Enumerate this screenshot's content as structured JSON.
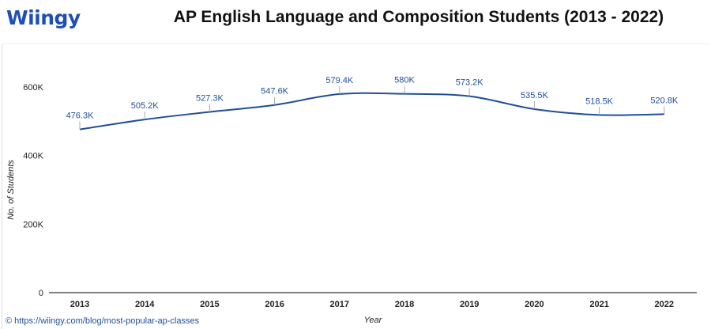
{
  "logo": "Wiingy",
  "source": "© https://wiingy.com/blog/most-popular-ap-classes",
  "chart_data": {
    "type": "line",
    "title": "AP English Language and Composition Students (2013 - 2022)",
    "xlabel": "Year",
    "ylabel": "No. of Students",
    "categories": [
      "2013",
      "2014",
      "2015",
      "2016",
      "2017",
      "2018",
      "2019",
      "2020",
      "2021",
      "2022"
    ],
    "values": [
      476.3,
      505.2,
      527.3,
      547.6,
      579.4,
      580,
      573.2,
      535.5,
      518.5,
      520.8
    ],
    "data_labels": [
      "476.3K",
      "505.2K",
      "527.3K",
      "547.6K",
      "579.4K",
      "580K",
      "573.2K",
      "535.5K",
      "518.5K",
      "520.8K"
    ],
    "yticks": [
      0,
      200,
      400,
      600
    ],
    "ytick_labels": [
      "0",
      "200K",
      "400K",
      "600K"
    ],
    "ylim": [
      0,
      600
    ],
    "color": "#1f4e9a",
    "grid": false
  }
}
